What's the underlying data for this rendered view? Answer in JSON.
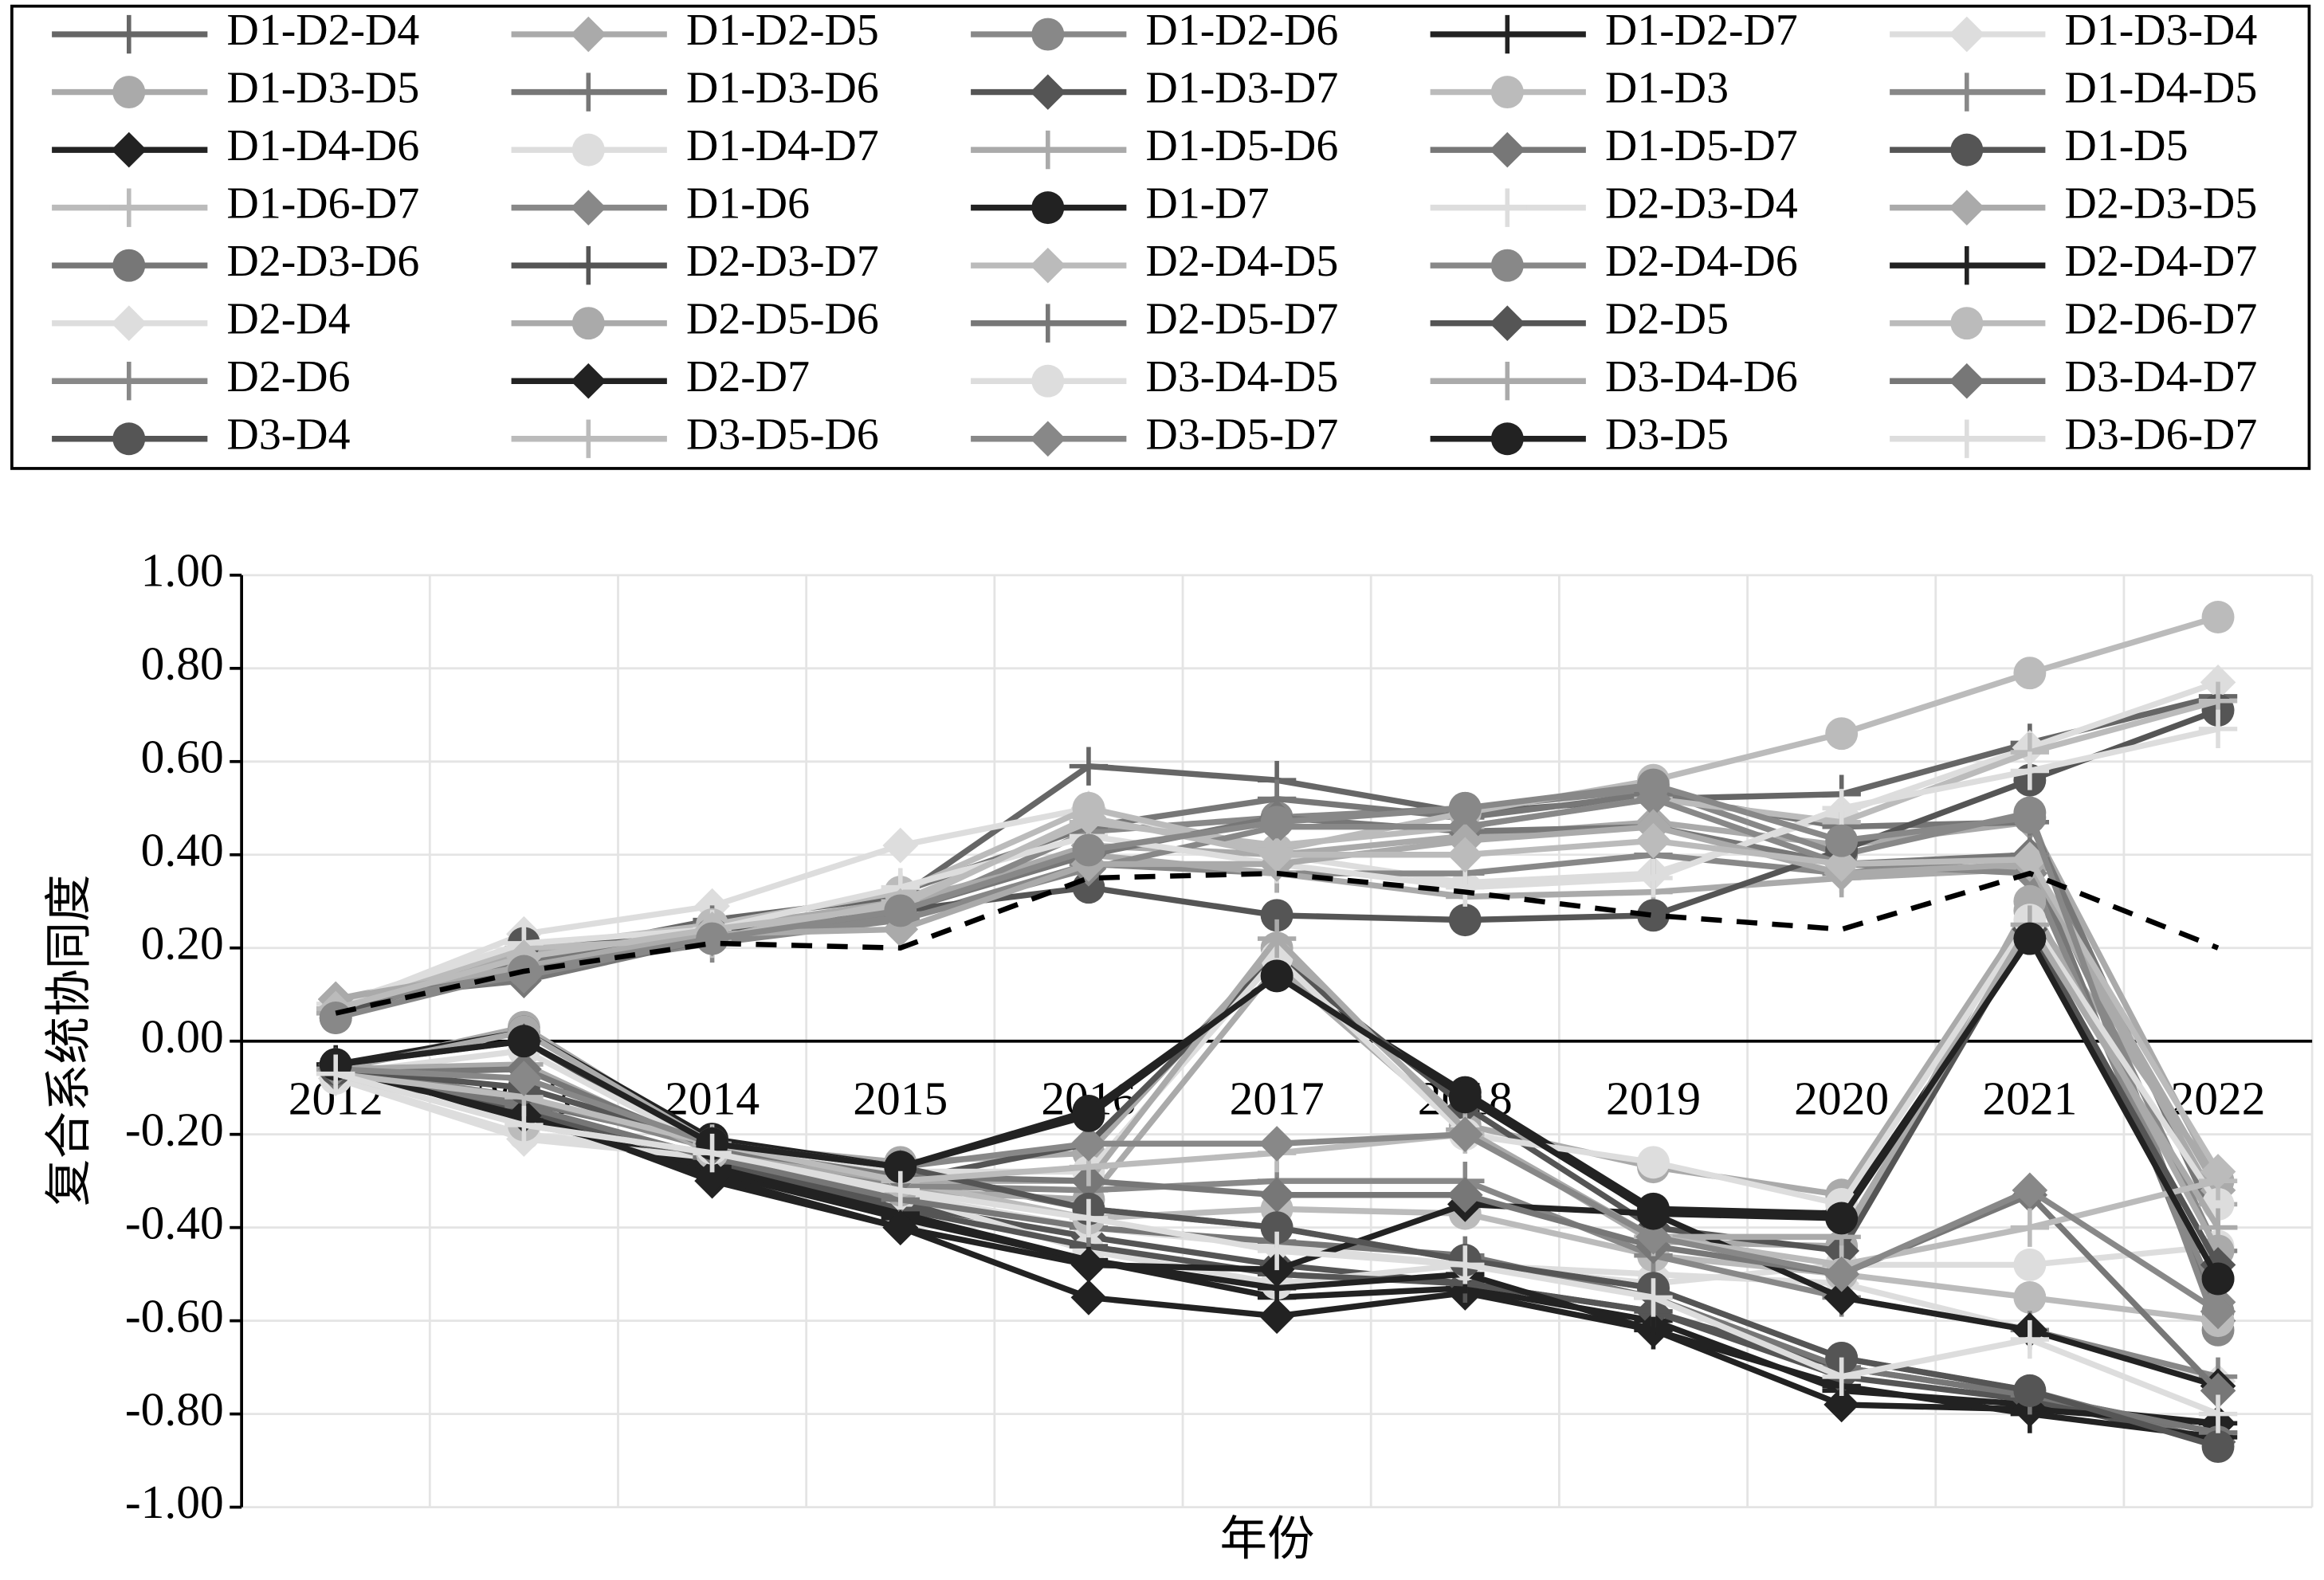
{
  "chart_data": {
    "type": "line",
    "x_label": "年份",
    "y_label": "复合系统协同度",
    "categories": [
      "2012",
      "2013",
      "2014",
      "2015",
      "2016",
      "2017",
      "2018",
      "2019",
      "2020",
      "2021",
      "2022"
    ],
    "ylim": [
      -1,
      1
    ],
    "yticks": [
      {
        "value": -1,
        "label": "-1.00"
      },
      {
        "value": -0.8,
        "label": "-0.80"
      },
      {
        "value": -0.6,
        "label": "-0.60"
      },
      {
        "value": -0.4,
        "label": "-0.40"
      },
      {
        "value": -0.2,
        "label": "-0.20"
      },
      {
        "value": 0,
        "label": "0.00"
      },
      {
        "value": 0.2,
        "label": "0.20"
      },
      {
        "value": 0.4,
        "label": "0.40"
      },
      {
        "value": 0.6,
        "label": "0.60"
      },
      {
        "value": 0.8,
        "label": "0.80"
      },
      {
        "value": 1,
        "label": "1.00"
      }
    ],
    "grid": true,
    "series": [
      {
        "name": "D1-D2-D4",
        "color": "#666666",
        "marker": "plus",
        "values": [
          0.06,
          0.18,
          0.26,
          0.31,
          0.59,
          0.56,
          0.49,
          0.52,
          0.53,
          0.64,
          0.74
        ]
      },
      {
        "name": "D1-D2-D5",
        "color": "#aaaaaa",
        "marker": "diamond",
        "values": [
          0.09,
          0.17,
          0.23,
          0.29,
          0.42,
          0.4,
          0.44,
          0.47,
          0.42,
          0.47,
          -0.3
        ]
      },
      {
        "name": "D1-D2-D6",
        "color": "#888888",
        "marker": "circle",
        "values": [
          0.07,
          0.16,
          0.22,
          0.27,
          0.45,
          0.48,
          0.5,
          0.54,
          0.4,
          0.49,
          -0.58
        ]
      },
      {
        "name": "D1-D2-D7",
        "color": "#222222",
        "marker": "plus",
        "values": [
          -0.06,
          -0.16,
          -0.28,
          -0.38,
          -0.47,
          -0.55,
          -0.53,
          -0.6,
          -0.75,
          -0.78,
          -0.82
        ]
      },
      {
        "name": "D1-D3-D4",
        "color": "#dddddd",
        "marker": "diamond",
        "values": [
          0.07,
          0.23,
          0.29,
          0.42,
          0.5,
          0.4,
          0.34,
          0.36,
          0.49,
          0.63,
          0.77
        ]
      },
      {
        "name": "D1-D3-D5",
        "color": "#aaaaaa",
        "marker": "circle",
        "values": [
          -0.06,
          0.03,
          -0.22,
          -0.26,
          -0.24,
          0.2,
          -0.18,
          -0.27,
          -0.33,
          0.28,
          -0.3
        ]
      },
      {
        "name": "D1-D3-D6",
        "color": "#777777",
        "marker": "plus",
        "values": [
          0.06,
          0.17,
          0.25,
          0.32,
          0.46,
          0.52,
          0.48,
          0.53,
          0.46,
          0.47,
          -0.4
        ]
      },
      {
        "name": "D1-D3-D7",
        "color": "#555555",
        "marker": "diamond",
        "values": [
          -0.07,
          -0.14,
          -0.26,
          -0.35,
          -0.42,
          -0.48,
          -0.52,
          -0.58,
          -0.72,
          -0.77,
          -0.86
        ]
      },
      {
        "name": "D1-D3",
        "color": "#bbbbbb",
        "marker": "circle",
        "values": [
          0.06,
          0.2,
          0.25,
          0.32,
          0.5,
          0.41,
          0.49,
          0.56,
          0.66,
          0.79,
          0.91
        ]
      },
      {
        "name": "D1-D4-D5",
        "color": "#888888",
        "marker": "plus",
        "values": [
          0.07,
          0.15,
          0.21,
          0.26,
          0.38,
          0.36,
          0.36,
          0.4,
          0.36,
          0.4,
          -0.45
        ]
      },
      {
        "name": "D1-D4-D6",
        "color": "#222222",
        "marker": "diamond",
        "values": [
          -0.06,
          -0.15,
          -0.3,
          -0.4,
          -0.55,
          -0.59,
          -0.54,
          -0.62,
          -0.78,
          -0.79,
          -0.82
        ]
      },
      {
        "name": "D1-D4-D7",
        "color": "#dddddd",
        "marker": "circle",
        "values": [
          -0.08,
          -0.2,
          -0.24,
          -0.33,
          -0.45,
          -0.52,
          -0.48,
          -0.52,
          -0.48,
          -0.48,
          -0.44
        ]
      },
      {
        "name": "D1-D5-D6",
        "color": "#aaaaaa",
        "marker": "plus",
        "values": [
          0.06,
          0.19,
          0.24,
          0.3,
          0.4,
          0.36,
          0.31,
          0.32,
          0.35,
          0.37,
          -0.35
        ]
      },
      {
        "name": "D1-D5-D7",
        "color": "#777777",
        "marker": "diamond",
        "values": [
          0.09,
          0.13,
          0.22,
          0.28,
          0.4,
          0.48,
          0.45,
          0.46,
          0.38,
          0.4,
          -0.6
        ]
      },
      {
        "name": "D1-D5",
        "color": "#555555",
        "marker": "circle",
        "values": [
          0.05,
          0.21,
          0.23,
          0.28,
          0.33,
          0.27,
          0.26,
          0.27,
          0.41,
          0.56,
          0.71
        ]
      },
      {
        "name": "D1-D6-D7",
        "color": "#bbbbbb",
        "marker": "plus",
        "values": [
          0.07,
          0.2,
          0.22,
          0.3,
          0.47,
          0.42,
          0.46,
          0.52,
          0.47,
          0.62,
          0.73
        ]
      },
      {
        "name": "D1-D6",
        "color": "#888888",
        "marker": "diamond",
        "values": [
          0.08,
          0.14,
          0.22,
          0.26,
          0.37,
          0.46,
          0.46,
          0.52,
          0.38,
          0.36,
          -0.56
        ]
      },
      {
        "name": "D1-D7",
        "color": "#222222",
        "marker": "circle",
        "values": [
          -0.05,
          0.02,
          -0.21,
          -0.27,
          -0.15,
          0.14,
          -0.11,
          -0.36,
          -0.37,
          0.22,
          -0.51
        ]
      },
      {
        "name": "D2-D3-D4",
        "color": "#dddddd",
        "marker": "plus",
        "values": [
          0.08,
          0.21,
          0.24,
          0.33,
          0.44,
          0.38,
          0.33,
          0.35,
          0.5,
          0.58,
          0.67
        ]
      },
      {
        "name": "D2-D3-D5",
        "color": "#aaaaaa",
        "marker": "diamond",
        "values": [
          0.09,
          0.16,
          0.23,
          0.24,
          0.38,
          0.38,
          0.43,
          0.46,
          0.36,
          0.38,
          -0.32
        ]
      },
      {
        "name": "D2-D3-D6",
        "color": "#777777",
        "marker": "circle",
        "values": [
          -0.06,
          -0.13,
          -0.22,
          -0.28,
          -0.36,
          -0.4,
          -0.47,
          -0.53,
          -0.68,
          -0.75,
          -0.86
        ]
      },
      {
        "name": "D2-D3-D7",
        "color": "#555555",
        "marker": "plus",
        "values": [
          -0.07,
          -0.15,
          -0.26,
          -0.36,
          -0.44,
          -0.5,
          -0.52,
          -0.58,
          -0.7,
          -0.76,
          -0.84
        ]
      },
      {
        "name": "D2-D4-D5",
        "color": "#bbbbbb",
        "marker": "diamond",
        "values": [
          0.07,
          0.18,
          0.24,
          0.29,
          0.48,
          0.4,
          0.4,
          0.43,
          0.38,
          0.39,
          -0.28
        ]
      },
      {
        "name": "D2-D4-D6",
        "color": "#888888",
        "marker": "circle",
        "values": [
          0.05,
          0.15,
          0.22,
          0.28,
          0.41,
          0.47,
          0.5,
          0.55,
          0.43,
          0.48,
          -0.62
        ]
      },
      {
        "name": "D2-D4-D7",
        "color": "#222222",
        "marker": "plus",
        "values": [
          -0.05,
          -0.17,
          -0.27,
          -0.37,
          -0.47,
          -0.53,
          -0.5,
          -0.62,
          -0.74,
          -0.8,
          -0.85
        ]
      },
      {
        "name": "D2-D4",
        "color": "#dddddd",
        "marker": "diamond",
        "values": [
          -0.08,
          -0.21,
          -0.25,
          -0.33,
          -0.4,
          -0.44,
          -0.48,
          -0.5,
          -0.52,
          -0.62,
          -0.73
        ]
      },
      {
        "name": "D2-D5-D6",
        "color": "#aaaaaa",
        "marker": "circle",
        "values": [
          -0.06,
          0.02,
          -0.22,
          -0.32,
          -0.34,
          0.16,
          -0.19,
          -0.43,
          -0.44,
          0.3,
          -0.45
        ]
      },
      {
        "name": "D2-D5-D7",
        "color": "#777777",
        "marker": "plus",
        "values": [
          -0.06,
          -0.14,
          -0.25,
          -0.34,
          -0.4,
          -0.43,
          -0.46,
          -0.55,
          -0.7,
          -0.76,
          -0.84
        ]
      },
      {
        "name": "D2-D5",
        "color": "#555555",
        "marker": "diamond",
        "values": [
          -0.05,
          0.0,
          -0.23,
          -0.3,
          -0.22,
          0.18,
          -0.14,
          -0.4,
          -0.45,
          0.24,
          -0.48
        ]
      },
      {
        "name": "D2-D6-D7",
        "color": "#bbbbbb",
        "marker": "circle",
        "values": [
          -0.07,
          -0.18,
          -0.24,
          -0.3,
          -0.38,
          -0.36,
          -0.37,
          -0.46,
          -0.5,
          -0.55,
          -0.6
        ]
      },
      {
        "name": "D2-D6",
        "color": "#888888",
        "marker": "plus",
        "values": [
          -0.06,
          -0.12,
          -0.23,
          -0.31,
          -0.32,
          -0.3,
          -0.3,
          -0.46,
          -0.55,
          -0.62,
          -0.72
        ]
      },
      {
        "name": "D2-D7",
        "color": "#222222",
        "marker": "diamond",
        "values": [
          -0.06,
          -0.16,
          -0.29,
          -0.4,
          -0.48,
          -0.49,
          -0.35,
          -0.37,
          -0.55,
          -0.62,
          -0.74
        ]
      },
      {
        "name": "D3-D4-D5",
        "color": "#dddddd",
        "marker": "circle",
        "values": [
          -0.07,
          -0.02,
          -0.23,
          -0.28,
          -0.28,
          0.18,
          -0.2,
          -0.26,
          -0.35,
          0.26,
          -0.35
        ]
      },
      {
        "name": "D3-D4-D6",
        "color": "#aaaaaa",
        "marker": "plus",
        "values": [
          -0.06,
          -0.05,
          -0.24,
          -0.3,
          -0.3,
          0.22,
          -0.19,
          -0.42,
          -0.42,
          0.25,
          -0.4
        ]
      },
      {
        "name": "D3-D4-D7",
        "color": "#777777",
        "marker": "diamond",
        "values": [
          -0.07,
          -0.06,
          -0.23,
          -0.29,
          -0.3,
          -0.33,
          -0.33,
          -0.44,
          -0.5,
          -0.33,
          -0.75
        ]
      },
      {
        "name": "D3-D4",
        "color": "#555555",
        "marker": "circle",
        "values": [
          -0.06,
          -0.1,
          -0.22,
          -0.27,
          -0.36,
          -0.4,
          -0.47,
          -0.53,
          -0.68,
          -0.75,
          -0.87
        ]
      },
      {
        "name": "D3-D5-D6",
        "color": "#bbbbbb",
        "marker": "plus",
        "values": [
          -0.07,
          -0.12,
          -0.22,
          -0.3,
          -0.27,
          -0.24,
          -0.2,
          -0.42,
          -0.48,
          -0.4,
          -0.3
        ]
      },
      {
        "name": "D3-D5-D7",
        "color": "#888888",
        "marker": "diamond",
        "values": [
          -0.06,
          -0.08,
          -0.22,
          -0.27,
          -0.22,
          -0.22,
          -0.2,
          -0.42,
          -0.5,
          -0.32,
          -0.58
        ]
      },
      {
        "name": "D3-D5",
        "color": "#222222",
        "marker": "circle",
        "values": [
          -0.05,
          0.0,
          -0.22,
          -0.27,
          -0.16,
          0.14,
          -0.12,
          -0.37,
          -0.38,
          0.22,
          -0.51
        ]
      },
      {
        "name": "D3-D6-D7",
        "color": "#dddddd",
        "marker": "plus",
        "values": [
          -0.07,
          -0.18,
          -0.24,
          -0.32,
          -0.38,
          -0.45,
          -0.48,
          -0.55,
          -0.72,
          -0.64,
          -0.8
        ]
      },
      {
        "color": "#000000",
        "dash": true,
        "values": [
          0.06,
          0.15,
          0.21,
          0.2,
          0.35,
          0.36,
          0.32,
          0.27,
          0.24,
          0.36,
          0.2
        ]
      }
    ]
  }
}
